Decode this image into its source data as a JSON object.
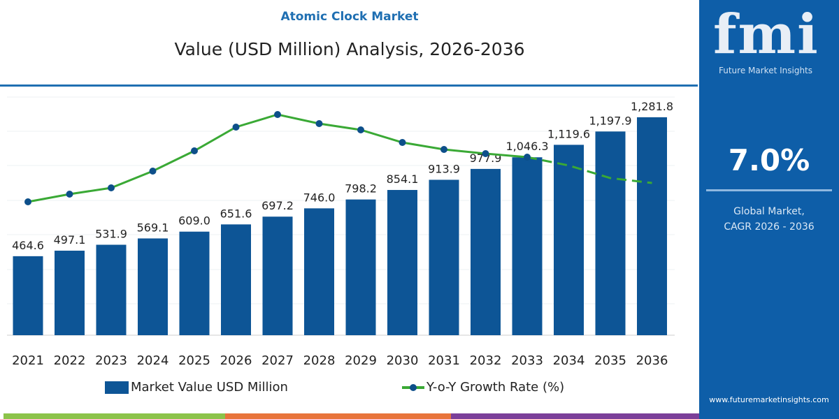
{
  "header": {
    "title": "Atomic Clock Market",
    "subtitle": "Value (USD Million) Analysis, 2026-2036"
  },
  "side_panel": {
    "logo_text": "fmi",
    "logo_subtitle": "Future Market Insights",
    "cagr_value": "7.0%",
    "cagr_label_line1": "Global Market,",
    "cagr_label_line2": "CAGR 2026 - 2036",
    "url": "www.futuremarketinsights.com",
    "background": "#0e5ea8"
  },
  "legend": {
    "bar_label": "Market Value USD Million",
    "line_label": "Y-o-Y Growth Rate (%)"
  },
  "chart_data": {
    "type": "bar",
    "categories": [
      "2021",
      "2022",
      "2023",
      "2024",
      "2025",
      "2026",
      "2027",
      "2028",
      "2029",
      "2030",
      "2031",
      "2032",
      "2033",
      "2034",
      "2035",
      "2036"
    ],
    "series": [
      {
        "name": "Market Value USD Million",
        "type": "bar",
        "color": "#0d5596",
        "values": [
          464.6,
          497.1,
          531.9,
          569.1,
          609.0,
          651.6,
          697.2,
          746.0,
          798.2,
          854.1,
          913.9,
          977.9,
          1046.3,
          1119.6,
          1197.9,
          1281.8
        ],
        "labels": [
          "464.6",
          "497.1",
          "531.9",
          "569.1",
          "609.0",
          "651.6",
          "697.2",
          "746.0",
          "798.2",
          "854.1",
          "913.9",
          "977.9",
          "1,046.3",
          "1,119.6",
          "1,197.9",
          "1,281.8"
        ]
      },
      {
        "name": "Y-o-Y Growth Rate (%)",
        "type": "line",
        "color": "#3aa935",
        "marker_color": "#0d4f8a",
        "values_relative_estimate": [
          1.1,
          2.2,
          3.1,
          5.5,
          8.4,
          11.8,
          13.6,
          12.3,
          11.4,
          9.6,
          8.6,
          8.0,
          7.5,
          6.3,
          4.5,
          3.8
        ],
        "dashed_from": "2033"
      }
    ],
    "ylim": [
      0,
      1300
    ],
    "grid": true,
    "legend_position": "bottom"
  },
  "bottom_strip": [
    "#8cc34a",
    "#e8743b",
    "#7b3f99"
  ]
}
